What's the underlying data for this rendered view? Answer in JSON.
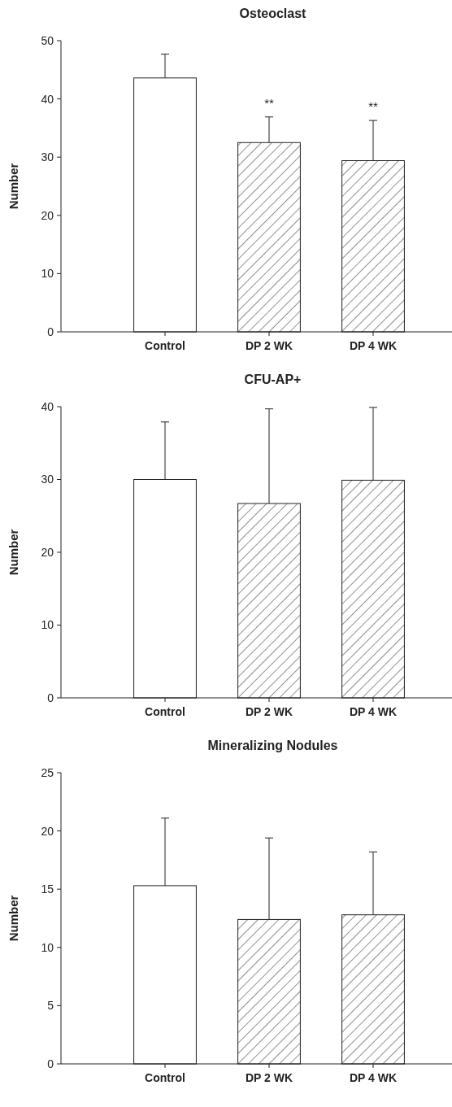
{
  "chart_data": [
    {
      "type": "bar",
      "title": "Osteoclast",
      "ylabel": "Number",
      "categories": [
        "Control",
        "DP 2 WK",
        "DP 4 WK"
      ],
      "values": [
        43.6,
        32.5,
        29.4
      ],
      "errors": [
        [
          43.6,
          47.7
        ],
        [
          32.5,
          36.9
        ],
        [
          29.4,
          36.3
        ]
      ],
      "colors": [
        "#ffffff",
        "#222222",
        "#222222"
      ],
      "ylim": [
        0,
        50
      ],
      "yticks": [
        0,
        10,
        20,
        30,
        40,
        50
      ],
      "grid": false,
      "annotations": [
        {
          "text": "**",
          "x": "DP 2 WK",
          "y": 36.9
        },
        {
          "text": "**",
          "x": "DP 4 WK",
          "y": 36.3
        }
      ]
    },
    {
      "type": "bar",
      "title": "CFU-AP+",
      "ylabel": "Number",
      "categories": [
        "Control",
        "DP 2 WK",
        "DP 4 WK"
      ],
      "values": [
        30.0,
        26.7,
        29.9
      ],
      "errors": [
        [
          30.0,
          37.9
        ],
        [
          26.7,
          39.7
        ],
        [
          29.9,
          39.9
        ]
      ],
      "colors": [
        "#ffffff",
        "#222222",
        "#222222"
      ],
      "ylim": [
        0,
        40
      ],
      "yticks": [
        0,
        10,
        20,
        30,
        40
      ],
      "grid": false
    },
    {
      "type": "bar",
      "title": "Mineralizing Nodules",
      "ylabel": "Number",
      "categories": [
        "Control",
        "DP 2 WK",
        "DP 4 WK"
      ],
      "values": [
        15.3,
        12.4,
        12.8
      ],
      "errors": [
        [
          15.3,
          21.1
        ],
        [
          12.4,
          19.4
        ],
        [
          12.8,
          18.2
        ]
      ],
      "colors": [
        "#ffffff",
        "#222222",
        "#222222"
      ],
      "ylim": [
        0,
        25
      ],
      "yticks": [
        0,
        5,
        10,
        15,
        20,
        25
      ],
      "grid": false
    }
  ]
}
